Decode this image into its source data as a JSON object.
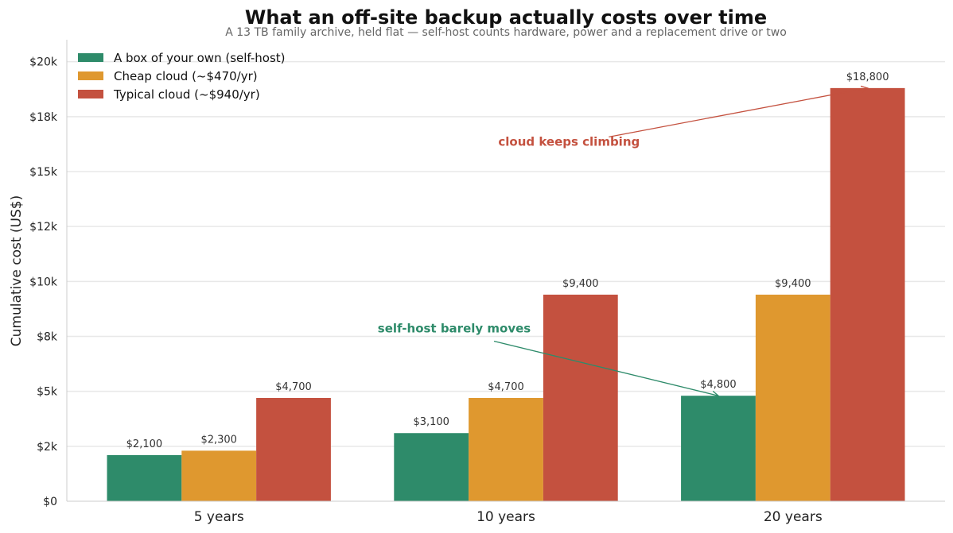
{
  "chart_data": {
    "type": "bar",
    "title": "What an off-site backup actually costs over time",
    "subtitle": "A 13 TB family archive, held flat — self-host counts hardware, power and a replacement drive or two",
    "ylabel": "Cumulative cost (US$)",
    "xlabel": "",
    "categories": [
      "5 years",
      "10 years",
      "20 years"
    ],
    "ylim": [
      0,
      21000
    ],
    "yticks": [
      0,
      2500,
      5000,
      7500,
      10000,
      12500,
      15000,
      17500,
      20000
    ],
    "ytick_labels": [
      "$0",
      "$2k",
      "$5k",
      "$8k",
      "$10k",
      "$12k",
      "$15k",
      "$18k",
      "$20k"
    ],
    "grid": "horizontal",
    "legend_position": "top-left",
    "series": [
      {
        "name": "A box of your own (self-host)",
        "color": "#2e8b6a",
        "values": [
          2100,
          3100,
          4800
        ],
        "labels": [
          "$2,100",
          "$3,100",
          "$4,800"
        ]
      },
      {
        "name": "Cheap cloud (~$470/yr)",
        "color": "#df982f",
        "values": [
          2300,
          4700,
          9400
        ],
        "labels": [
          "$2,300",
          "$4,700",
          "$9,400"
        ]
      },
      {
        "name": "Typical cloud (~$940/yr)",
        "color": "#c4513f",
        "values": [
          4700,
          9400,
          18800
        ],
        "labels": [
          "$4,700",
          "$9,400",
          "$18,800"
        ]
      }
    ],
    "annotations": [
      {
        "text": "self-host barely moves",
        "color": "#2e8b6a",
        "series": 0,
        "category": 2,
        "text_x": 1,
        "text_y": 7500
      },
      {
        "text": "cloud keeps climbing",
        "color": "#c4513f",
        "series": 2,
        "category": 2,
        "text_x": 1.4,
        "text_y": 16000
      }
    ]
  }
}
